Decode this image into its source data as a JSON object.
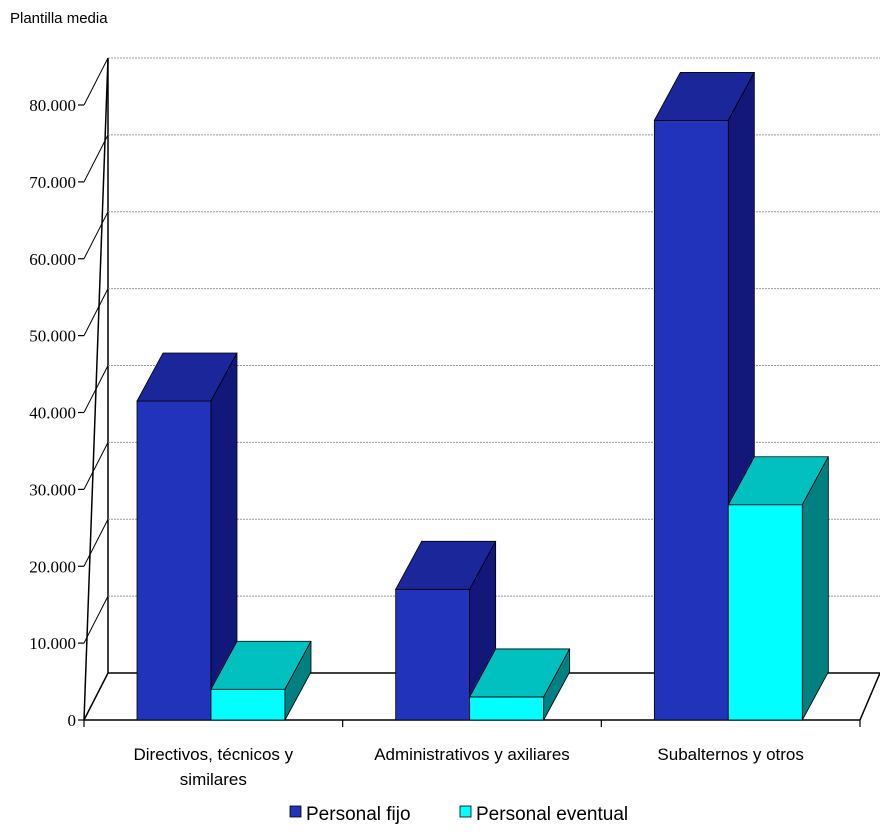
{
  "chart_data": {
    "type": "bar",
    "title": "Plantilla media",
    "categories": [
      [
        "Directivos, técnicos y",
        "similares"
      ],
      [
        "Administrativos y axiliares"
      ],
      [
        "Subalternos y otros"
      ]
    ],
    "series": [
      {
        "name": "Personal fijo",
        "values": [
          41500,
          17000,
          78000
        ],
        "color": "#2233bb"
      },
      {
        "name": "Personal eventual",
        "values": [
          4000,
          3000,
          28000
        ],
        "color": "#00ffff"
      }
    ],
    "yticks": [
      "0",
      "10.000",
      "20.000",
      "30.000",
      "40.000",
      "50.000",
      "60.000",
      "70.000",
      "80.000"
    ],
    "ylim": [
      0,
      80000
    ],
    "grid": true,
    "legend": "bottom",
    "style": "3d"
  }
}
